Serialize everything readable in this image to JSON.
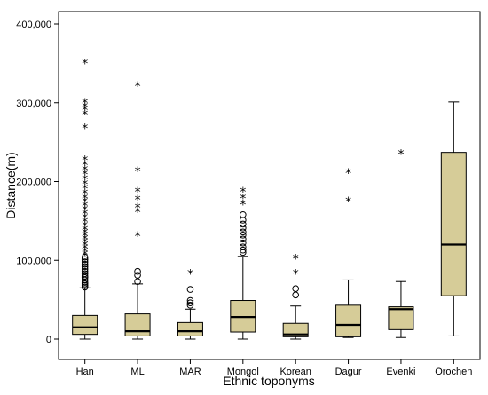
{
  "chart_data": {
    "type": "boxplot",
    "title": "",
    "xlabel": "Ethnic toponyms",
    "ylabel": "Distance(m)",
    "ylim": [
      -20000,
      420000
    ],
    "yticks": [
      0,
      100000,
      200000,
      300000,
      400000
    ],
    "ytick_labels": [
      "0",
      "100,000",
      "200,000",
      "300,000",
      "400,000"
    ],
    "grid": false,
    "box_color": "#d6cc98",
    "categories": [
      "Han",
      "ML",
      "MAR",
      "Mongol",
      "Korean",
      "Dagur",
      "Evenki",
      "Orochen"
    ],
    "boxes": [
      {
        "name": "Han",
        "min": 0,
        "q1": 6000,
        "median": 15000,
        "q3": 30000,
        "max": 65000,
        "outliers_circle": [
          66000,
          68000,
          70000,
          72000,
          75000,
          78000,
          80000,
          83000,
          86000,
          89000,
          92000,
          95000,
          98000,
          101000,
          104000
        ],
        "outliers_star": [
          108000,
          112000,
          116000,
          120000,
          124000,
          128000,
          132000,
          136000,
          140000,
          145000,
          150000,
          155000,
          160000,
          165000,
          170000,
          175000,
          180000,
          186000,
          192000,
          198000,
          204000,
          210000,
          216000,
          222000,
          228000,
          269000,
          286000,
          292000,
          296000,
          301000,
          351000
        ]
      },
      {
        "name": "ML",
        "min": 0,
        "q1": 4000,
        "median": 10000,
        "q3": 32000,
        "max": 70000,
        "outliers_circle": [
          73000,
          81000,
          86000
        ],
        "outliers_star": [
          132000,
          162000,
          168000,
          178000,
          188000,
          214000,
          322000
        ]
      },
      {
        "name": "MAR",
        "min": 0,
        "q1": 4000,
        "median": 10000,
        "q3": 21000,
        "max": 38000,
        "outliers_circle": [
          43000,
          46000,
          49000,
          63000
        ],
        "outliers_star": [
          84000
        ]
      },
      {
        "name": "Mongol",
        "min": 0,
        "q1": 9000,
        "median": 28000,
        "q3": 49000,
        "max": 105000,
        "outliers_circle": [
          110000,
          113000,
          117000,
          122000,
          127000,
          132000,
          136000,
          141000,
          146000,
          151000,
          158000
        ],
        "outliers_star": [
          172000,
          180000,
          188000
        ]
      },
      {
        "name": "Korean",
        "min": 0,
        "q1": 3000,
        "median": 6000,
        "q3": 20000,
        "max": 42000,
        "outliers_circle": [
          56000,
          64000
        ],
        "outliers_star": [
          84000,
          103000
        ]
      },
      {
        "name": "Dagur",
        "min": 2000,
        "q1": 3000,
        "median": 18000,
        "q3": 43000,
        "max": 75000,
        "outliers_circle": [],
        "outliers_star": [
          176000,
          212000
        ]
      },
      {
        "name": "Evenki",
        "min": 2000,
        "q1": 12000,
        "median": 38000,
        "q3": 41000,
        "max": 73000,
        "outliers_circle": [],
        "outliers_star": [
          236000
        ]
      },
      {
        "name": "Orochen",
        "min": 4000,
        "q1": 55000,
        "median": 120000,
        "q3": 237000,
        "max": 301000,
        "outliers_circle": [],
        "outliers_star": []
      }
    ]
  }
}
